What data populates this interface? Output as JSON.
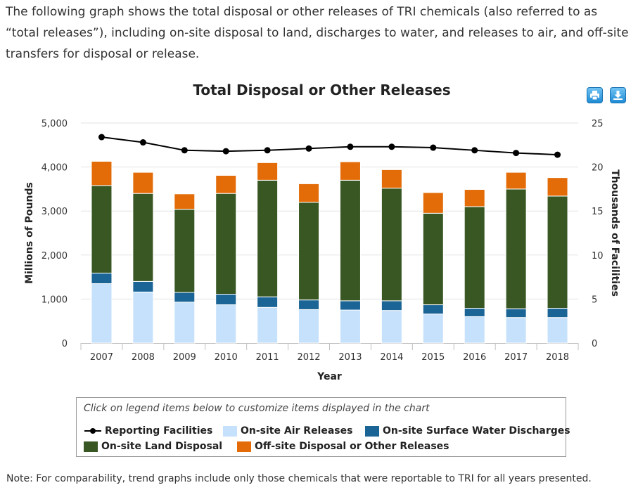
{
  "intro_text": "The following graph shows the total disposal or other releases of TRI chemicals (also referred to as “total releases”), including on-site disposal to land, discharges to water, and releases to air, and off-site transfers for disposal or release.",
  "toolbar": {
    "print_icon": "print-icon",
    "download_icon": "download-icon"
  },
  "legend": {
    "hint": "Click on legend items below to customize items displayed in the chart",
    "items": [
      {
        "label": "Reporting Facilities",
        "color": "#000000",
        "kind": "line"
      },
      {
        "label": "On-site Air Releases",
        "color": "#c6e1fb",
        "kind": "box"
      },
      {
        "label": "On-site Surface Water Discharges",
        "color": "#1a6496",
        "kind": "box"
      },
      {
        "label": "On-site Land Disposal",
        "color": "#385723",
        "kind": "box"
      },
      {
        "label": "Off-site Disposal or Other Releases",
        "color": "#e36c09",
        "kind": "box"
      }
    ]
  },
  "note": "Note: For comparability, trend graphs include only those chemicals that were reportable to TRI for all years presented.",
  "chart_data": {
    "type": "bar",
    "stacked": true,
    "title": "Total Disposal or Other Releases",
    "xlabel": "Year",
    "ylabel": "Millions of Pounds",
    "y2label": "Thousands of Facilities",
    "ylim": [
      0,
      5000
    ],
    "y2lim": [
      0,
      25
    ],
    "yticks": [
      "0",
      "1,000",
      "2,000",
      "3,000",
      "4,000",
      "5,000"
    ],
    "y2ticks": [
      "0",
      "5",
      "10",
      "15",
      "20",
      "25"
    ],
    "categories": [
      "2007",
      "2008",
      "2009",
      "2010",
      "2011",
      "2012",
      "2013",
      "2014",
      "2015",
      "2016",
      "2017",
      "2018"
    ],
    "series": [
      {
        "name": "On-site Air Releases",
        "color": "#c6e1fb",
        "values": [
          1350,
          1160,
          930,
          870,
          810,
          760,
          750,
          740,
          660,
          600,
          580,
          580
        ]
      },
      {
        "name": "On-site Surface Water Discharges",
        "color": "#1a6496",
        "values": [
          240,
          240,
          220,
          240,
          240,
          220,
          210,
          220,
          210,
          190,
          200,
          210
        ]
      },
      {
        "name": "On-site Land Disposal",
        "color": "#385723",
        "values": [
          1990,
          2000,
          1890,
          2290,
          2650,
          2220,
          2740,
          2560,
          2080,
          2310,
          2720,
          2550
        ]
      },
      {
        "name": "Off-site Disposal or Other Releases",
        "color": "#e36c09",
        "values": [
          550,
          480,
          350,
          410,
          400,
          420,
          420,
          420,
          470,
          390,
          380,
          420
        ]
      },
      {
        "name": "Reporting Facilities",
        "axis": "right",
        "type": "line",
        "color": "#000000",
        "values": [
          23.4,
          22.8,
          21.9,
          21.8,
          21.9,
          22.1,
          22.3,
          22.3,
          22.2,
          21.9,
          21.6,
          21.4
        ]
      }
    ]
  }
}
